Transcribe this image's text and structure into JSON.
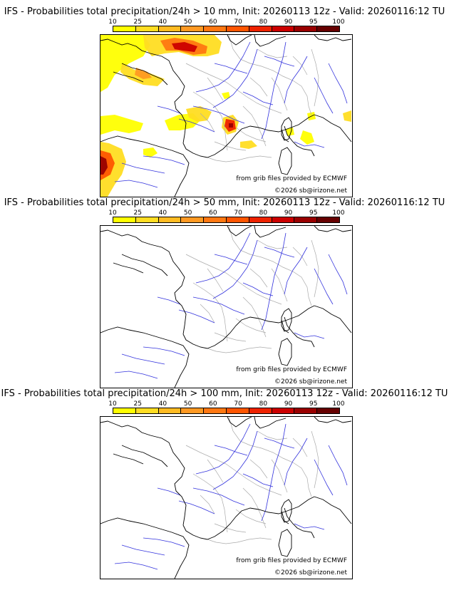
{
  "colors": {
    "scale": [
      "#ffff00",
      "#ffdd22",
      "#ffbb22",
      "#ff9922",
      "#ff7711",
      "#ff5500",
      "#ee2200",
      "#cc0000",
      "#990000",
      "#660000"
    ],
    "coast": "#000000",
    "rivers": "#3333dd",
    "borders": "#aaaaaa"
  },
  "colorbar": {
    "ticks": [
      "10",
      "25",
      "40",
      "50",
      "60",
      "70",
      "80",
      "90",
      "95",
      "100"
    ]
  },
  "panels": [
    {
      "title": "IFS - Probabilities total precipitation/24h > 10 mm, Init: 20260113 12z - Valid: 20260116:12 TU",
      "credit_source": "from grib files provided by ECMWF",
      "credit_copyright": "©2026 sb@irizone.net",
      "has_precip": true
    },
    {
      "title": "IFS - Probabilities total precipitation/24h > 50 mm, Init: 20260113 12z - Valid: 20260116:12 TU",
      "credit_source": "from grib files provided by ECMWF",
      "credit_copyright": "©2026 sb@irizone.net",
      "has_precip": false
    },
    {
      "title": "IFS - Probabilities total precipitation/24h > 100 mm, Init: 20260113 12z - Valid: 20260116:12 TU",
      "credit_source": "from grib files provided by ECMWF",
      "credit_copyright": "©2026 sb@irizone.net",
      "has_precip": false
    }
  ]
}
